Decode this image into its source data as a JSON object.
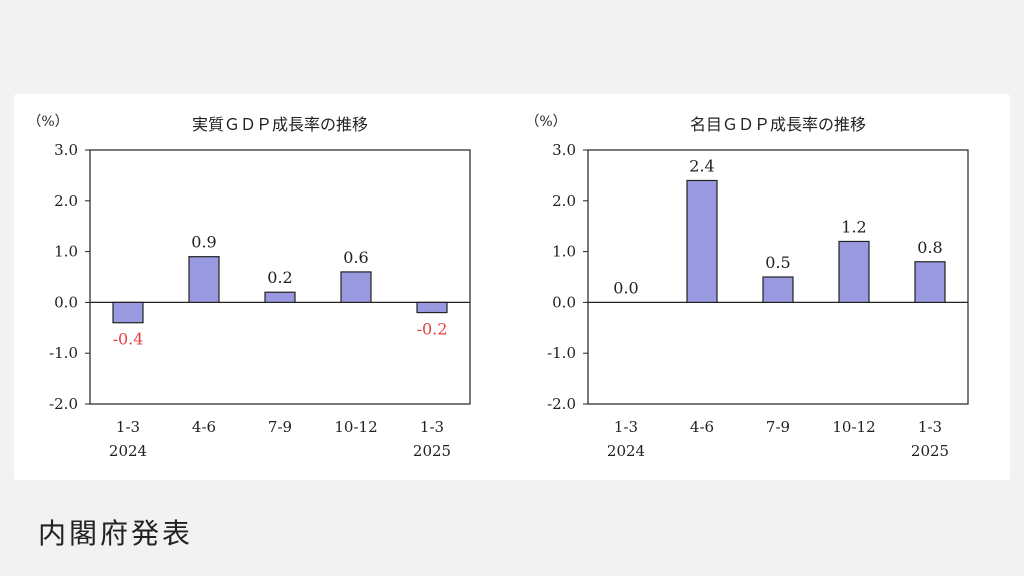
{
  "chart_data": [
    {
      "type": "bar",
      "title": "実質ＧＤＰ成長率の推移",
      "unit": "（%）",
      "categories": [
        "1-3",
        "4-6",
        "7-9",
        "10-12",
        "1-3"
      ],
      "years": [
        "2024",
        "",
        "",
        "",
        "2025"
      ],
      "values": [
        -0.4,
        0.9,
        0.2,
        0.6,
        -0.2
      ],
      "value_labels": [
        "-0.4",
        "0.9",
        "0.2",
        "0.6",
        "-0.2"
      ],
      "yticks": [
        "3.0",
        "2.0",
        "1.0",
        "0.0",
        "-1.0",
        "-2.0"
      ],
      "ylim": [
        -2.0,
        3.0
      ],
      "grid": false,
      "bar_color": "#9999e0",
      "negative_label_color": "#e84040"
    },
    {
      "type": "bar",
      "title": "名目ＧＤＰ成長率の推移",
      "unit": "（%）",
      "categories": [
        "1-3",
        "4-6",
        "7-9",
        "10-12",
        "1-3"
      ],
      "years": [
        "2024",
        "",
        "",
        "",
        "2025"
      ],
      "values": [
        0.0,
        2.4,
        0.5,
        1.2,
        0.8
      ],
      "value_labels": [
        "0.0",
        "2.4",
        "0.5",
        "1.2",
        "0.8"
      ],
      "yticks": [
        "3.0",
        "2.0",
        "1.0",
        "0.0",
        "-1.0",
        "-2.0"
      ],
      "ylim": [
        -2.0,
        3.0
      ],
      "grid": false,
      "bar_color": "#9999e0",
      "negative_label_color": "#e84040"
    }
  ],
  "footer": {
    "source": "内閣府発表"
  }
}
